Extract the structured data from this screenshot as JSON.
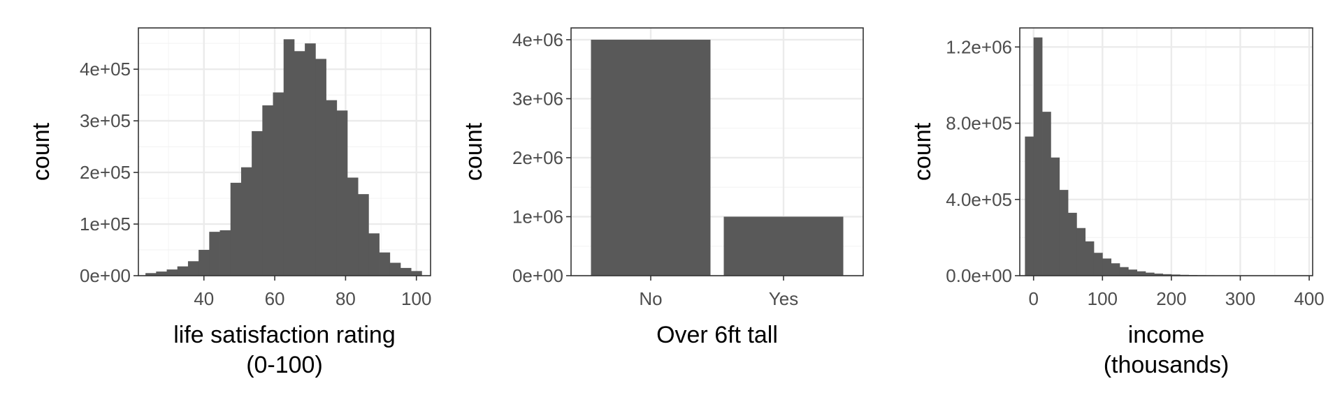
{
  "chart_data": [
    {
      "type": "bar",
      "subtype": "histogram",
      "xlabel": "life satisfaction rating\n(0-100)",
      "ylabel": "count",
      "xlim": [
        21.5,
        104
      ],
      "ylim": [
        0,
        480000
      ],
      "x_ticks": [
        40,
        60,
        80,
        100
      ],
      "y_ticks": [
        0,
        100000,
        200000,
        300000,
        400000
      ],
      "y_tick_labels": [
        "0e+00",
        "1e+05",
        "2e+05",
        "3e+05",
        "4e+05"
      ],
      "bin_width": 3,
      "bin_centers": [
        25,
        28,
        31,
        34,
        37,
        40,
        43,
        46,
        49,
        52,
        55,
        58,
        61,
        64,
        67,
        70,
        73,
        76,
        79,
        82,
        85,
        88,
        91,
        94,
        97,
        100
      ],
      "values": [
        5000,
        8000,
        12000,
        18000,
        28000,
        50000,
        85000,
        88000,
        180000,
        210000,
        280000,
        330000,
        355000,
        458000,
        435000,
        450000,
        420000,
        340000,
        320000,
        190000,
        158000,
        82000,
        45000,
        25000,
        15000,
        9000
      ],
      "bar_color": "#595959",
      "grid": true
    },
    {
      "type": "bar",
      "xlabel": "Over 6ft tall",
      "ylabel": "count",
      "categories": [
        "No",
        "Yes"
      ],
      "values": [
        4000000,
        1000000
      ],
      "ylim": [
        0,
        4200000
      ],
      "y_ticks": [
        0,
        1000000,
        2000000,
        3000000,
        4000000
      ],
      "y_tick_labels": [
        "0e+00",
        "1e+06",
        "2e+06",
        "3e+06",
        "4e+06"
      ],
      "bar_color": "#595959",
      "grid": true
    },
    {
      "type": "bar",
      "subtype": "histogram",
      "xlabel": "income\n(thousands)",
      "ylabel": "count",
      "xlim": [
        -20,
        405
      ],
      "ylim": [
        0,
        1300000
      ],
      "x_ticks": [
        0,
        100,
        200,
        300,
        400
      ],
      "y_ticks": [
        0,
        400000,
        800000,
        1200000
      ],
      "y_tick_labels": [
        "0.0e+00",
        "4.0e+05",
        "8.0e+05",
        "1.2e+06"
      ],
      "bin_width": 12.5,
      "bin_centers": [
        -6.25,
        6.25,
        18.75,
        31.25,
        43.75,
        56.25,
        68.75,
        81.25,
        93.75,
        106.25,
        118.75,
        131.25,
        143.75,
        156.25,
        168.75,
        181.25,
        193.75,
        206.25,
        218.75,
        231.25,
        243.75,
        256.25,
        268.75,
        281.25,
        293.75
      ],
      "values": [
        730000,
        1250000,
        860000,
        620000,
        450000,
        330000,
        250000,
        180000,
        120000,
        90000,
        65000,
        45000,
        32000,
        23000,
        16000,
        11000,
        8000,
        6000,
        4500,
        3500,
        2500,
        2000,
        1500,
        1200,
        1000
      ],
      "bar_color": "#595959",
      "grid": true
    }
  ]
}
